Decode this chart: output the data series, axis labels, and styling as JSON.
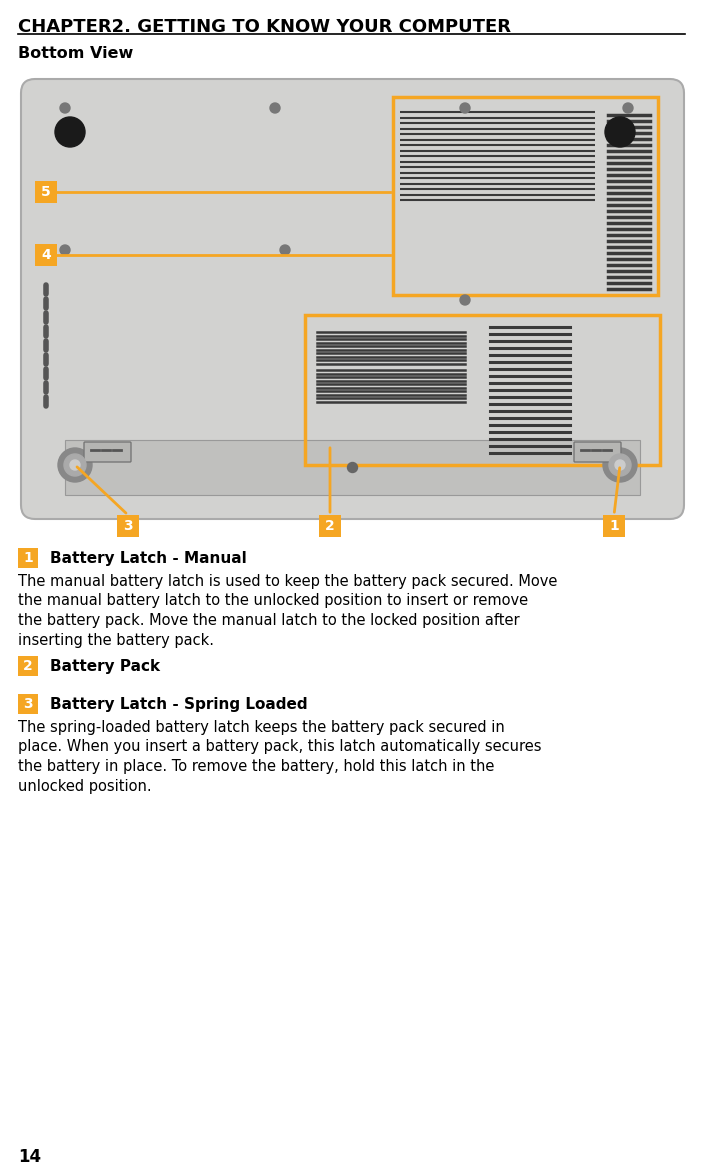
{
  "title": "CHAPTER2. GETTING TO KNOW YOUR COMPUTER",
  "subtitle": "Bottom View",
  "page_number": "14",
  "bg_color": "#ffffff",
  "orange_color": "#F5A623",
  "items": [
    {
      "num": "1",
      "heading": "Battery Latch - Manual",
      "text": "The manual battery latch is used to keep the battery pack secured. Move the manual battery latch to the unlocked position to insert or remove the battery pack. Move the manual latch to the locked position after inserting the battery pack."
    },
    {
      "num": "2",
      "heading": "Battery Pack",
      "text": ""
    },
    {
      "num": "3",
      "heading": "Battery Latch - Spring Loaded",
      "text": "The spring-loaded battery latch keeps the battery pack secured in place. When you insert a battery pack, this latch automatically secures the battery in place. To remove the battery, hold this latch in the unlocked position."
    }
  ],
  "fig_width": 7.03,
  "fig_height": 11.7,
  "dpi": 100
}
